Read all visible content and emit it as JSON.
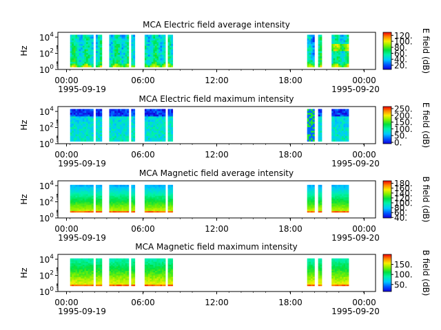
{
  "chart_data": [
    {
      "type": "heatmap",
      "title": "MCA  Electric field average intensity",
      "ylabel": "Hz",
      "y_ticks": [
        "10^0",
        "10^2",
        "10^4"
      ],
      "x_ticks": [
        "00:00",
        "06:00",
        "12:00",
        "18:00",
        "00:00"
      ],
      "x_dates": [
        "1995-09-19",
        "1995-09-20"
      ],
      "xlim": [
        "1995-09-19T00:00",
        "1995-09-20T01:00"
      ],
      "ylim_log10": [
        0,
        4.6
      ],
      "colorbar": {
        "label": "E field (dB)",
        "ticks": [
          "20.",
          "40.",
          "60.",
          "80.",
          "100.",
          "120."
        ],
        "range": [
          6,
          130
        ]
      },
      "data_segments_hours": [
        [
          1.0,
          2.9
        ],
        [
          3.1,
          3.6
        ],
        [
          4.2,
          5.8
        ],
        [
          6.0,
          6.3
        ],
        [
          7.1,
          8.8
        ],
        [
          9.0,
          9.4
        ],
        [
          20.4,
          21.0
        ],
        [
          21.3,
          21.6
        ],
        [
          22.4,
          23.8
        ]
      ],
      "freq_range_log10": [
        0.3,
        4.3
      ],
      "palette": "rainbow"
    },
    {
      "type": "heatmap",
      "title": "MCA  Electric field maximum intensity",
      "ylabel": "Hz",
      "y_ticks": [
        "10^0",
        "10^2",
        "10^4"
      ],
      "x_ticks": [
        "00:00",
        "06:00",
        "12:00",
        "18:00",
        "00:00"
      ],
      "x_dates": [
        "1995-09-19",
        "1995-09-20"
      ],
      "xlim": [
        "1995-09-19T00:00",
        "1995-09-20T01:00"
      ],
      "ylim_log10": [
        0,
        4.6
      ],
      "colorbar": {
        "label": "E field (dB)",
        "ticks": [
          "0.",
          "50.",
          "100.",
          "150.",
          "200.",
          "250."
        ],
        "range": [
          -10,
          265
        ]
      },
      "data_segments_hours": [
        [
          1.0,
          2.9
        ],
        [
          3.1,
          3.6
        ],
        [
          4.2,
          5.8
        ],
        [
          6.0,
          6.3
        ],
        [
          7.1,
          8.8
        ],
        [
          9.0,
          9.4
        ],
        [
          20.4,
          21.0
        ],
        [
          21.3,
          21.6
        ],
        [
          22.4,
          23.8
        ]
      ],
      "freq_range_log10": [
        0.3,
        4.3
      ],
      "palette": "rainbow"
    },
    {
      "type": "heatmap",
      "title": "MCA  Magnetic field average intensity",
      "ylabel": "Hz",
      "y_ticks": [
        "10^0",
        "10^2",
        "10^4"
      ],
      "x_ticks": [
        "00:00",
        "06:00",
        "12:00",
        "18:00",
        "00:00"
      ],
      "x_dates": [
        "1995-09-19",
        "1995-09-20"
      ],
      "xlim": [
        "1995-09-19T00:00",
        "1995-09-20T01:00"
      ],
      "ylim_log10": [
        0,
        4.6
      ],
      "colorbar": {
        "label": "B field (dB)",
        "ticks": [
          "40.",
          "60.",
          "80.",
          "100.",
          "120.",
          "140.",
          "160.",
          "180."
        ],
        "range": [
          38,
          190
        ]
      },
      "data_segments_hours": [
        [
          1.0,
          2.9
        ],
        [
          3.1,
          3.6
        ],
        [
          4.2,
          5.8
        ],
        [
          6.0,
          6.3
        ],
        [
          7.1,
          8.8
        ],
        [
          9.0,
          9.4
        ],
        [
          20.4,
          21.0
        ],
        [
          21.3,
          21.6
        ],
        [
          22.4,
          23.8
        ]
      ],
      "freq_range_log10": [
        0.7,
        4.1
      ],
      "palette": "rainbow"
    },
    {
      "type": "heatmap",
      "title": "MCA  Magnetic field maximum intensity",
      "ylabel": "Hz",
      "y_ticks": [
        "10^0",
        "10^2",
        "10^4"
      ],
      "x_ticks": [
        "00:00",
        "06:00",
        "12:00",
        "18:00",
        "00:00"
      ],
      "x_dates": [
        "1995-09-19",
        "1995-09-20"
      ],
      "xlim": [
        "1995-09-19T00:00",
        "1995-09-20T01:00"
      ],
      "ylim_log10": [
        0,
        4.6
      ],
      "colorbar": {
        "label": "B field (dB)",
        "ticks": [
          "50.",
          "100.",
          "150."
        ],
        "range": [
          15,
          200
        ]
      },
      "data_segments_hours": [
        [
          1.0,
          2.9
        ],
        [
          3.1,
          3.6
        ],
        [
          4.2,
          5.8
        ],
        [
          6.0,
          6.3
        ],
        [
          7.1,
          8.8
        ],
        [
          9.0,
          9.4
        ],
        [
          20.4,
          21.0
        ],
        [
          21.3,
          21.6
        ],
        [
          22.4,
          23.8
        ]
      ],
      "freq_range_log10": [
        0.7,
        4.1
      ],
      "palette": "rainbow"
    }
  ]
}
